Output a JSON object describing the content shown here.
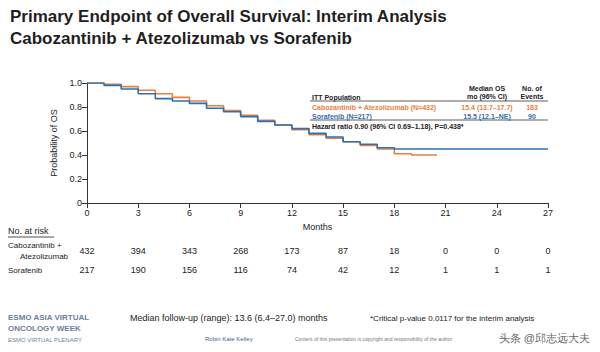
{
  "chart_data": {
    "type": "step",
    "title": [
      "Primary Endpoint of Overall Survival: Interim Analysis",
      "Cabozantinib + Atezolizumab vs Sorafenib"
    ],
    "xlabel": "Months",
    "ylabel": "Probability of OS",
    "xlim": [
      0,
      27
    ],
    "xticks": [
      0,
      3,
      6,
      9,
      12,
      15,
      18,
      21,
      24,
      27
    ],
    "ylim": [
      0,
      1
    ],
    "yticks": [
      0,
      0.2,
      0.4,
      0.6,
      0.8,
      {
        "value": 1,
        "label": "1.0"
      }
    ],
    "grid": false,
    "series": [
      {
        "name": "Cabozantinib + Atezolizumab (N=432)",
        "color": "#e5823f",
        "median_os": "15.4 (13.7–17.7)",
        "events": 183,
        "x": [
          0,
          1,
          2,
          3,
          4,
          5,
          6,
          7,
          8,
          9,
          10,
          11,
          12,
          13,
          14,
          15,
          16,
          17,
          18,
          19,
          20.5
        ],
        "values": [
          1,
          0.99,
          0.97,
          0.94,
          0.91,
          0.88,
          0.85,
          0.81,
          0.77,
          0.73,
          0.69,
          0.65,
          0.61,
          0.57,
          0.54,
          0.51,
          0.48,
          0.45,
          0.41,
          0.4,
          0.4
        ]
      },
      {
        "name": "Sorafenib (N=217)",
        "color": "#2f6fb0",
        "median_os": "15.5 (12.1–NE)",
        "events": 90,
        "x": [
          0,
          1,
          2,
          3,
          4,
          5,
          6,
          7,
          8,
          9,
          10,
          11,
          12,
          13,
          14,
          15,
          16,
          17,
          18,
          27
        ],
        "values": [
          1,
          0.98,
          0.95,
          0.91,
          0.87,
          0.85,
          0.83,
          0.79,
          0.76,
          0.72,
          0.68,
          0.65,
          0.62,
          0.58,
          0.55,
          0.51,
          0.49,
          0.46,
          0.45,
          0.45
        ]
      }
    ],
    "legend_table": {
      "header": "ITT Population",
      "columns": [
        [
          "Median OS",
          "mo (96% CI)"
        ],
        [
          "No. of",
          "Events"
        ]
      ],
      "footer": "Hazard ratio 0.90 (96% CI 0.69–1.18), P=0.438*"
    },
    "at_risk": {
      "title": "No. at risk",
      "times": [
        0,
        3,
        6,
        9,
        12,
        15,
        18,
        21,
        24,
        27
      ],
      "rows": [
        {
          "label": [
            "Cabozantinib +",
            "Atezolizumab"
          ],
          "values": [
            432,
            394,
            343,
            268,
            173,
            87,
            18,
            0,
            0,
            0
          ]
        },
        {
          "label": [
            "Sorafenib"
          ],
          "values": [
            217,
            190,
            156,
            116,
            74,
            42,
            12,
            1,
            1,
            1
          ]
        }
      ]
    },
    "footer": {
      "conference": [
        "ESMO ASIA VIRTUAL",
        "ONCOLOGY WEEK",
        "ESMO VIRTUAL PLENARY"
      ],
      "follow_up": "Median follow-up (range): 13.6 (6.4–27.0) months",
      "presenter": "Robin Kate Kelley",
      "copyright": "Content of this presentation is copyright and responsibility of the author",
      "footnote": "*Critical p-value 0.0117 for the interim analysis",
      "watermark": "头条 @邱志远大夫"
    }
  }
}
